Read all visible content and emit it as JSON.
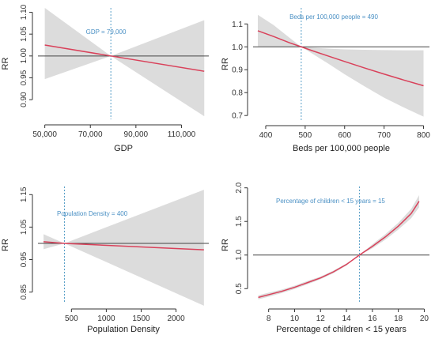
{
  "colors": {
    "curve": "#d9415a",
    "band": "#dcdcdc",
    "reference_line": "#444444",
    "threshold_line": "#5aa0c8",
    "annotation": "#4a90c4",
    "axis": "#333333"
  },
  "chart_data": [
    {
      "type": "line",
      "title": "",
      "xlabel": "GDP",
      "ylabel": "RR",
      "xlim": [
        47000,
        122000
      ],
      "ylim": [
        0.855,
        1.11
      ],
      "x_ticks": [
        50000,
        70000,
        90000,
        110000
      ],
      "x_tick_labels": [
        "50,000",
        "70,000",
        "90,000",
        "110,000"
      ],
      "y_ticks": [
        0.9,
        0.95,
        1.0,
        1.05,
        1.1
      ],
      "y_tick_labels": [
        "0.90",
        "0.95",
        "1.00",
        "1.05",
        "1.10"
      ],
      "y_tick_rotation": "vertical",
      "reference_line": 1.0,
      "threshold_x": 79000,
      "annotation": "GDP = 79,000",
      "annotation_position": "top-center",
      "series": [
        {
          "x": [
            50000,
            79000,
            120000
          ],
          "values": [
            1.025,
            1.0,
            0.965
          ],
          "ci_lower": [
            0.947,
            1.0,
            0.862
          ],
          "ci_upper": [
            1.11,
            1.0,
            1.082
          ]
        }
      ]
    },
    {
      "type": "line",
      "title": "",
      "xlabel": "Beds per 100,000 people",
      "ylabel": "RR",
      "xlim": [
        368,
        815
      ],
      "ylim": [
        0.68,
        1.17
      ],
      "x_ticks": [
        400,
        500,
        600,
        700,
        800
      ],
      "x_tick_labels": [
        "400",
        "500",
        "600",
        "700",
        "800"
      ],
      "y_ticks": [
        0.7,
        0.8,
        0.9,
        1.0,
        1.1
      ],
      "y_tick_labels": [
        "0.7",
        "0.8",
        "0.9",
        "1.0",
        "1.1"
      ],
      "y_tick_rotation": "horizontal",
      "reference_line": 1.0,
      "threshold_x": 490,
      "annotation": "Beds per 100,000 people = 490",
      "annotation_position": "top-center",
      "series": [
        {
          "x": [
            380,
            420,
            460,
            490,
            520,
            560,
            600,
            650,
            700,
            750,
            800
          ],
          "values": [
            1.07,
            1.045,
            1.018,
            1.0,
            0.982,
            0.959,
            0.936,
            0.908,
            0.881,
            0.855,
            0.83
          ],
          "ci_lower": [
            1.002,
            1.0,
            1.0,
            1.0,
            0.968,
            0.925,
            0.88,
            0.828,
            0.778,
            0.735,
            0.695
          ],
          "ci_upper": [
            1.14,
            1.095,
            1.04,
            1.0,
            0.996,
            0.992,
            0.989,
            0.987,
            0.986,
            0.985,
            0.985
          ]
        }
      ]
    },
    {
      "type": "line",
      "title": "",
      "xlabel": "Population Density",
      "ylabel": "RR",
      "xlim": [
        20,
        2470
      ],
      "ylim": [
        0.815,
        1.175
      ],
      "x_ticks": [
        500,
        1000,
        1500,
        2000
      ],
      "x_tick_labels": [
        "500",
        "1000",
        "1500",
        "2000"
      ],
      "y_ticks": [
        0.85,
        0.95,
        1.05,
        1.15
      ],
      "y_tick_labels": [
        "0.85",
        "0.95",
        "1.05",
        "1.15"
      ],
      "y_tick_rotation": "vertical",
      "reference_line": 1.0,
      "threshold_x": 400,
      "annotation": "Population Density = 400",
      "annotation_position": "top-left",
      "series": [
        {
          "x": [
            100,
            400,
            2400
          ],
          "values": [
            1.005,
            1.0,
            0.98
          ],
          "ci_lower": [
            0.982,
            1.0,
            0.808
          ],
          "ci_upper": [
            1.028,
            1.0,
            1.165
          ]
        }
      ]
    },
    {
      "type": "line",
      "title": "",
      "xlabel": "Percentage of children < 15 years",
      "ylabel": "RR",
      "xlim": [
        6.8,
        20.4
      ],
      "ylim": [
        0.28,
        2.02
      ],
      "x_ticks": [
        8,
        10,
        12,
        14,
        16,
        18,
        20
      ],
      "x_tick_labels": [
        "8",
        "10",
        "12",
        "14",
        "16",
        "18",
        "20"
      ],
      "y_ticks": [
        0.5,
        1.0,
        1.5,
        2.0
      ],
      "y_tick_labels": [
        "0.5",
        "1.0",
        "1.5",
        "2.0"
      ],
      "y_tick_rotation": "vertical",
      "reference_line": 1.0,
      "threshold_x": 15,
      "annotation": "Percentage of children < 15 years = 15",
      "annotation_position": "top-left",
      "series": [
        {
          "x": [
            7.2,
            8,
            9,
            10,
            11,
            12,
            13,
            14,
            15,
            16,
            17,
            18,
            19,
            19.6
          ],
          "values": [
            0.37,
            0.41,
            0.46,
            0.52,
            0.59,
            0.66,
            0.75,
            0.86,
            1.0,
            1.13,
            1.27,
            1.43,
            1.62,
            1.8
          ],
          "ci_lower": [
            0.34,
            0.38,
            0.435,
            0.495,
            0.565,
            0.64,
            0.73,
            0.845,
            1.0,
            1.1,
            1.23,
            1.38,
            1.55,
            1.71
          ],
          "ci_upper": [
            0.4,
            0.44,
            0.485,
            0.545,
            0.615,
            0.68,
            0.77,
            0.875,
            1.0,
            1.16,
            1.31,
            1.48,
            1.69,
            1.89
          ]
        }
      ]
    }
  ]
}
